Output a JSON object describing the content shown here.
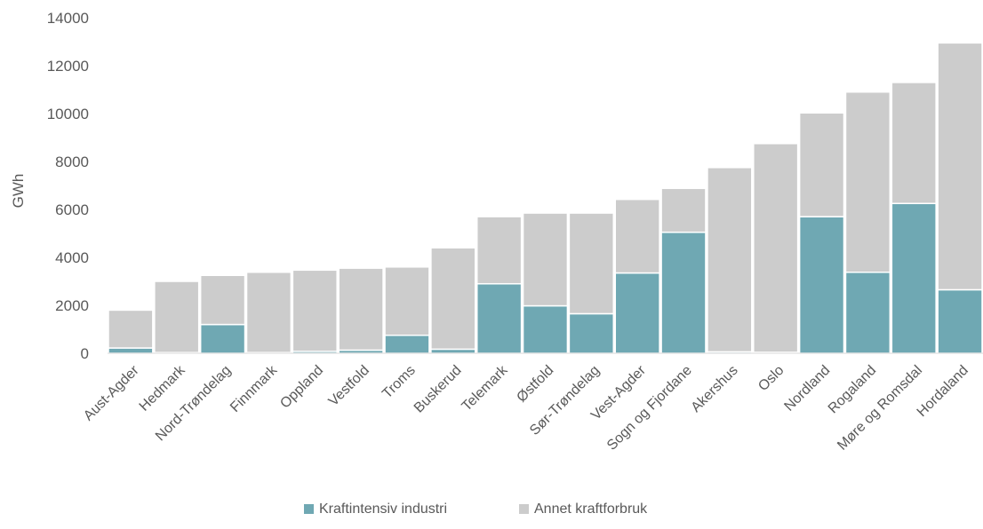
{
  "chart_data": {
    "type": "bar",
    "stacked": true,
    "title": "",
    "xlabel": "",
    "ylabel": "GWh",
    "ylim": [
      0,
      14000
    ],
    "yticks": [
      0,
      2000,
      4000,
      6000,
      8000,
      10000,
      12000,
      14000
    ],
    "grid": false,
    "legend_position": "bottom",
    "categories": [
      "Aust-Agder",
      "Hedmark",
      "Nord-Trøndelag",
      "Finnmark",
      "Oppland",
      "Vestfold",
      "Troms",
      "Buskerud",
      "Telemark",
      "Østfold",
      "Sør-Trøndelag",
      "Vest-Agder",
      "Sogn og Fjordane",
      "Akershus",
      "Oslo",
      "Nordland",
      "Rogaland",
      "Møre og Romsdal",
      "Hordaland"
    ],
    "series": [
      {
        "name": "Kraftintensiv industri",
        "color": "#6fa8b3",
        "values": [
          220,
          30,
          1200,
          30,
          80,
          130,
          750,
          170,
          2900,
          1980,
          1650,
          3350,
          5050,
          60,
          40,
          5700,
          3380,
          6250,
          2650
        ]
      },
      {
        "name": "Annet kraftforbruk",
        "color": "#cccccc",
        "values": [
          1580,
          2970,
          2050,
          3350,
          3390,
          3420,
          2850,
          4230,
          2800,
          3870,
          4200,
          3070,
          1830,
          7690,
          8710,
          4330,
          7520,
          5050,
          10300
        ]
      }
    ]
  }
}
